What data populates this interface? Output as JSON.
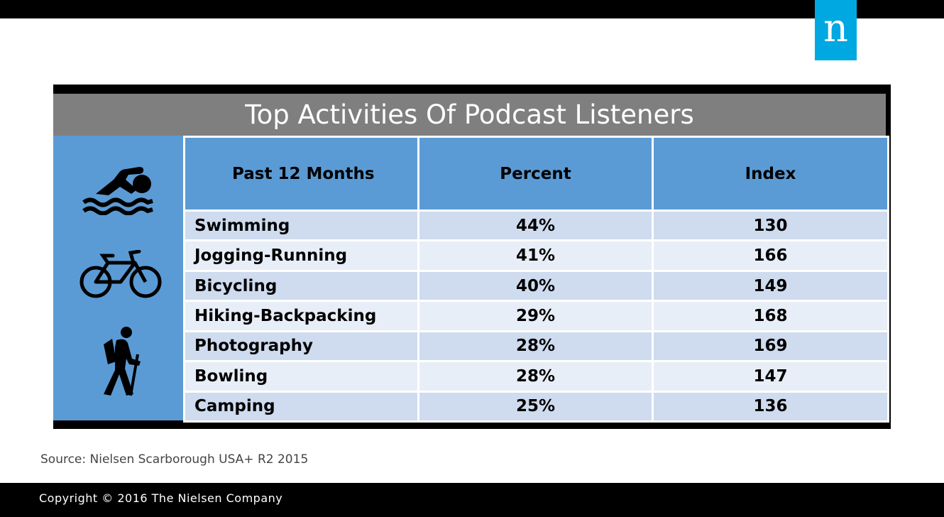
{
  "brand": {
    "logo_letter": "n",
    "logo_color": "#00a8e1"
  },
  "title": "Top Activities Of Podcast Listeners",
  "icons": [
    "swimmer-icon",
    "bicycle-icon",
    "hiker-icon"
  ],
  "table": {
    "headers": [
      "Past 12 Months",
      "Percent",
      "Index"
    ],
    "rows": [
      {
        "activity": "Swimming",
        "percent": "44%",
        "index": "130"
      },
      {
        "activity": "Jogging-Running",
        "percent": "41%",
        "index": "166"
      },
      {
        "activity": "Bicycling",
        "percent": "40%",
        "index": "149"
      },
      {
        "activity": "Hiking-Backpacking",
        "percent": "29%",
        "index": "168"
      },
      {
        "activity": "Photography",
        "percent": "28%",
        "index": "169"
      },
      {
        "activity": "Bowling",
        "percent": "28%",
        "index": "147"
      },
      {
        "activity": "Camping",
        "percent": "25%",
        "index": "136"
      }
    ]
  },
  "chart_data": {
    "type": "table",
    "title": "Top Activities Of Podcast Listeners",
    "columns": [
      "Past 12 Months",
      "Percent",
      "Index"
    ],
    "rows": [
      [
        "Swimming",
        "44%",
        130
      ],
      [
        "Jogging-Running",
        "41%",
        166
      ],
      [
        "Bicycling",
        "40%",
        149
      ],
      [
        "Hiking-Backpacking",
        "29%",
        168
      ],
      [
        "Photography",
        "28%",
        169
      ],
      [
        "Bowling",
        "28%",
        147
      ],
      [
        "Camping",
        "25%",
        136
      ]
    ]
  },
  "source": "Source: Nielsen Scarborough USA+ R2 2015",
  "copyright": "Copyright © 2016 The Nielsen Company",
  "colors": {
    "header_blue": "#5b9bd5",
    "title_gray": "#7f7f7f",
    "row_dark": "#cfdbee",
    "row_light": "#e8eef7"
  }
}
